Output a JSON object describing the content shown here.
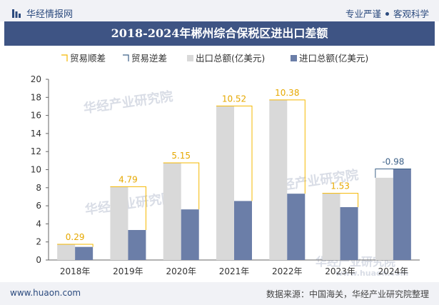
{
  "header": {
    "logo_text": "华经情报网",
    "slogan_left": "专业严谨",
    "slogan_right": "客观科学"
  },
  "watermark": {
    "text": "华经产业研究院",
    "url": "www.huaon.com"
  },
  "chart_data": {
    "type": "bar",
    "title": "2018-2024年郴州综合保税区进出口差额",
    "categories": [
      "2018年",
      "2019年",
      "2020年",
      "2021年",
      "2022年",
      "2023年",
      "2024年"
    ],
    "series": [
      {
        "name": "贸易顺差",
        "kind": "surplus-outline",
        "color": "#f5b800",
        "values": [
          0.29,
          4.79,
          5.15,
          10.52,
          10.38,
          1.53,
          null
        ]
      },
      {
        "name": "贸易逆差",
        "kind": "deficit-outline",
        "color": "#3e6288",
        "values": [
          null,
          null,
          null,
          null,
          null,
          null,
          -0.98
        ]
      },
      {
        "name": "出口总额(亿美元)",
        "color": "#d9d9d9",
        "values": [
          1.74,
          8.11,
          10.75,
          17.05,
          17.72,
          7.38,
          9.1
        ]
      },
      {
        "name": "进口总额(亿美元)",
        "color": "#6b7ea8",
        "values": [
          1.45,
          3.32,
          5.6,
          6.53,
          7.34,
          5.85,
          10.08
        ]
      }
    ],
    "data_labels": [
      "0.29",
      "4.79",
      "5.15",
      "10.52",
      "10.38",
      "1.53",
      "-0.98"
    ],
    "ylim": [
      0,
      20
    ],
    "yticks": [
      0,
      2,
      4,
      6,
      8,
      10,
      12,
      14,
      16,
      18,
      20
    ],
    "legend_position": "top",
    "grid": false
  },
  "footer": {
    "site": "www.huaon.com",
    "source": "数据来源：中国海关，华经产业研究院整理"
  }
}
